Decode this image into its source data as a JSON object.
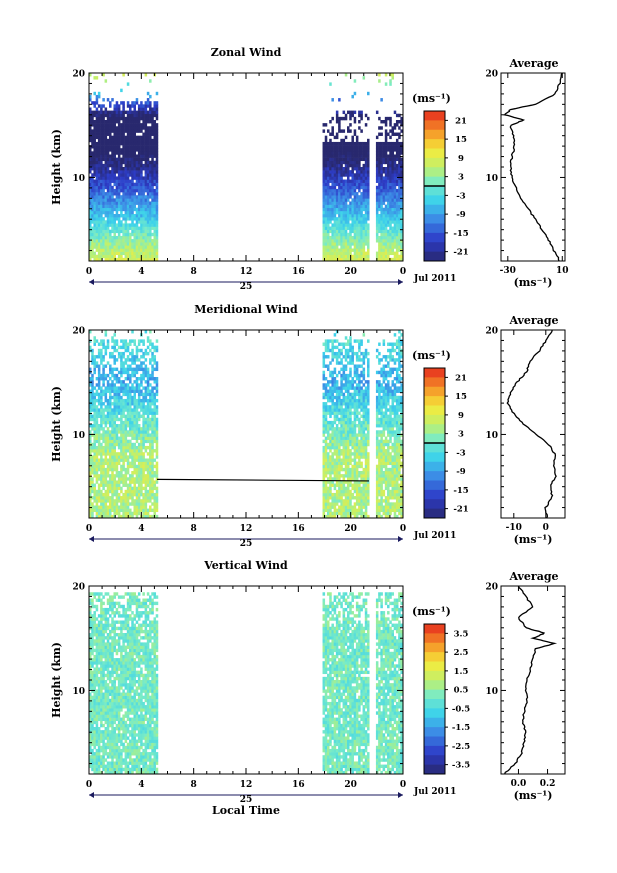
{
  "chart_data": [
    {
      "type": "heatmap",
      "title": "Zonal Wind",
      "ylabel": "Height (km)",
      "y_ticks": [
        "20",
        "10"
      ],
      "x_ticks": [
        "0",
        "4",
        "8",
        "12",
        "16",
        "20",
        "0"
      ],
      "xlim_hours": [
        0,
        24
      ],
      "ylim_km": [
        2,
        20
      ],
      "day_label": "25",
      "month_label": "Jul 2011",
      "data_gap_hours": [
        5.2,
        17.8
      ],
      "colorbar": {
        "unit": "(ms⁻¹)",
        "ticks": [
          "21",
          "15",
          "9",
          "3",
          "-3",
          "-9",
          "-15",
          "-21"
        ],
        "range": [
          -24,
          24
        ]
      },
      "profile": {
        "title": "Average",
        "y_ticks": [
          "20",
          "10"
        ],
        "x_ticks": [
          "-30",
          "10"
        ],
        "xlim": [
          -35,
          12
        ],
        "xlabel": "(ms⁻¹)",
        "height_km": [
          2,
          3,
          4,
          5,
          6,
          7,
          8,
          9,
          10,
          11,
          12,
          13,
          14,
          15,
          15.5,
          16,
          16.5,
          17,
          18,
          19,
          20
        ],
        "values": [
          8,
          4,
          0,
          -5,
          -10,
          -15,
          -20,
          -24,
          -27,
          -28,
          -27,
          -25,
          -26,
          -28,
          -18,
          -32,
          -28,
          -10,
          5,
          8,
          10
        ]
      }
    },
    {
      "type": "heatmap",
      "title": "Meridional Wind",
      "ylabel": "Height (km)",
      "y_ticks": [
        "20",
        "10"
      ],
      "x_ticks": [
        "0",
        "4",
        "8",
        "12",
        "16",
        "20",
        "0"
      ],
      "xlim_hours": [
        0,
        24
      ],
      "ylim_km": [
        2,
        20
      ],
      "day_label": "25",
      "month_label": "Jul 2011",
      "data_gap_hours": [
        5.2,
        17.8
      ],
      "colorbar": {
        "unit": "(ms⁻¹)",
        "ticks": [
          "21",
          "15",
          "9",
          "3",
          "-3",
          "-9",
          "-15",
          "-21"
        ],
        "range": [
          -24,
          24
        ]
      },
      "profile": {
        "title": "Average",
        "y_ticks": [
          "20",
          "10"
        ],
        "x_ticks": [
          "-10",
          "0"
        ],
        "xlim": [
          -14,
          6
        ],
        "xlabel": "(ms⁻¹)",
        "height_km": [
          2,
          3,
          4,
          5,
          6,
          7,
          8,
          9,
          10,
          11,
          12,
          13,
          14,
          15,
          16,
          17,
          18,
          19,
          20
        ],
        "values": [
          0.5,
          0,
          2,
          1.5,
          3,
          2.5,
          3,
          1,
          -3,
          -7,
          -10,
          -12,
          -11,
          -9,
          -6,
          -5,
          -2,
          0,
          2
        ]
      }
    },
    {
      "type": "heatmap",
      "title": "Vertical Wind",
      "xlabel": "Local Time",
      "ylabel": "Height (km)",
      "y_ticks": [
        "20",
        "10"
      ],
      "x_ticks": [
        "0",
        "4",
        "8",
        "12",
        "16",
        "20",
        "0"
      ],
      "xlim_hours": [
        0,
        24
      ],
      "ylim_km": [
        2,
        20
      ],
      "day_label": "25",
      "month_label": "Jul 2011",
      "data_gap_hours": [
        5.2,
        17.8
      ],
      "colorbar": {
        "unit": "(ms⁻¹)",
        "ticks": [
          "3.5",
          "2.5",
          "1.5",
          "0.5",
          "-0.5",
          "-1.5",
          "-2.5",
          "-3.5"
        ],
        "range": [
          -4,
          4
        ]
      },
      "profile": {
        "title": "Average",
        "y_ticks": [
          "20",
          "10"
        ],
        "x_ticks": [
          "0.0",
          "0.2"
        ],
        "xlim": [
          -0.12,
          0.32
        ],
        "xlabel": "(ms⁻¹)",
        "height_km": [
          2,
          3,
          4,
          5,
          6,
          7,
          8,
          9,
          10,
          11,
          12,
          13,
          14,
          14.5,
          15,
          15.5,
          16,
          17,
          18,
          19,
          20
        ],
        "values": [
          -0.1,
          -0.02,
          0.02,
          0.04,
          0.05,
          0.03,
          0.04,
          0.06,
          0.05,
          0.06,
          0.08,
          0.1,
          0.12,
          0.25,
          0.1,
          0.18,
          0.05,
          0.0,
          0.1,
          0.05,
          0.0
        ]
      }
    }
  ]
}
